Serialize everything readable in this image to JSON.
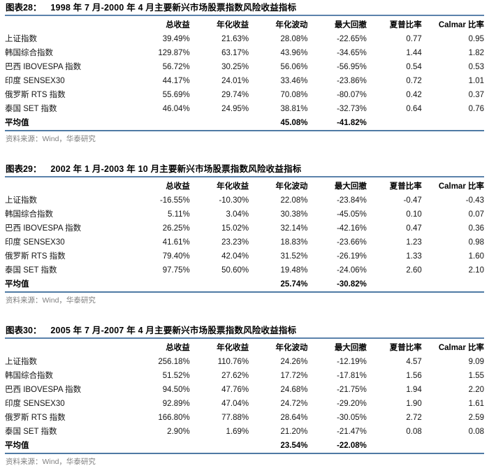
{
  "colors": {
    "title_rule": "#5b82ab",
    "bottom_rule": "#4f7aa4",
    "title_text": "#000000",
    "body_text": "#141414",
    "source_text": "#7f7f7f",
    "background": "#ffffff"
  },
  "columns": [
    "总收益",
    "年化收益",
    "年化波动",
    "最大回撤",
    "夏普比率",
    "Calmar 比率"
  ],
  "source_label": "资料来源：Wind，华泰研究",
  "figures": [
    {
      "label": "图表28：",
      "title": "1998 年 7 月-2000 年 4 月主要新兴市场股票指数风险收益指标",
      "rows": [
        {
          "name": "上证指数",
          "bold": false,
          "values": [
            "39.49%",
            "21.63%",
            "28.08%",
            "-22.65%",
            "0.77",
            "0.95"
          ]
        },
        {
          "name": "韩国综合指数",
          "bold": false,
          "values": [
            "129.87%",
            "63.17%",
            "43.96%",
            "-34.65%",
            "1.44",
            "1.82"
          ]
        },
        {
          "name": "巴西 IBOVESPA 指数",
          "bold": false,
          "values": [
            "56.72%",
            "30.25%",
            "56.06%",
            "-56.95%",
            "0.54",
            "0.53"
          ]
        },
        {
          "name": "印度 SENSEX30",
          "bold": false,
          "values": [
            "44.17%",
            "24.01%",
            "33.46%",
            "-23.86%",
            "0.72",
            "1.01"
          ]
        },
        {
          "name": "俄罗斯 RTS 指数",
          "bold": false,
          "values": [
            "55.69%",
            "29.74%",
            "70.08%",
            "-80.07%",
            "0.42",
            "0.37"
          ]
        },
        {
          "name": "泰国 SET 指数",
          "bold": false,
          "values": [
            "46.04%",
            "24.95%",
            "38.81%",
            "-32.73%",
            "0.64",
            "0.76"
          ]
        },
        {
          "name": "平均值",
          "bold": true,
          "values": [
            "",
            "",
            "45.08%",
            "-41.82%",
            "",
            ""
          ]
        }
      ]
    },
    {
      "label": "图表29：",
      "title": "2002 年 1 月-2003 年 10 月主要新兴市场股票指数风险收益指标",
      "rows": [
        {
          "name": "上证指数",
          "bold": false,
          "values": [
            "-16.55%",
            "-10.30%",
            "22.08%",
            "-23.84%",
            "-0.47",
            "-0.43"
          ]
        },
        {
          "name": "韩国综合指数",
          "bold": false,
          "values": [
            "5.11%",
            "3.04%",
            "30.38%",
            "-45.05%",
            "0.10",
            "0.07"
          ]
        },
        {
          "name": "巴西 IBOVESPA 指数",
          "bold": false,
          "values": [
            "26.25%",
            "15.02%",
            "32.14%",
            "-42.16%",
            "0.47",
            "0.36"
          ]
        },
        {
          "name": "印度 SENSEX30",
          "bold": false,
          "values": [
            "41.61%",
            "23.23%",
            "18.83%",
            "-23.66%",
            "1.23",
            "0.98"
          ]
        },
        {
          "name": "俄罗斯 RTS 指数",
          "bold": false,
          "values": [
            "79.40%",
            "42.04%",
            "31.52%",
            "-26.19%",
            "1.33",
            "1.60"
          ]
        },
        {
          "name": "泰国 SET 指数",
          "bold": false,
          "values": [
            "97.75%",
            "50.60%",
            "19.48%",
            "-24.06%",
            "2.60",
            "2.10"
          ]
        },
        {
          "name": "平均值",
          "bold": true,
          "values": [
            "",
            "",
            "25.74%",
            "-30.82%",
            "",
            ""
          ]
        }
      ]
    },
    {
      "label": "图表30：",
      "title": "2005 年 7 月-2007 年 4 月主要新兴市场股票指数风险收益指标",
      "rows": [
        {
          "name": "上证指数",
          "bold": false,
          "values": [
            "256.18%",
            "110.76%",
            "24.26%",
            "-12.19%",
            "4.57",
            "9.09"
          ]
        },
        {
          "name": "韩国综合指数",
          "bold": false,
          "values": [
            "51.52%",
            "27.62%",
            "17.72%",
            "-17.81%",
            "1.56",
            "1.55"
          ]
        },
        {
          "name": "巴西 IBOVESPA 指数",
          "bold": false,
          "values": [
            "94.50%",
            "47.76%",
            "24.68%",
            "-21.75%",
            "1.94",
            "2.20"
          ]
        },
        {
          "name": "印度 SENSEX30",
          "bold": false,
          "values": [
            "92.89%",
            "47.04%",
            "24.72%",
            "-29.20%",
            "1.90",
            "1.61"
          ]
        },
        {
          "name": "俄罗斯 RTS 指数",
          "bold": false,
          "values": [
            "166.80%",
            "77.88%",
            "28.64%",
            "-30.05%",
            "2.72",
            "2.59"
          ]
        },
        {
          "name": "泰国 SET 指数",
          "bold": false,
          "values": [
            "2.90%",
            "1.69%",
            "21.20%",
            "-21.47%",
            "0.08",
            "0.08"
          ]
        },
        {
          "name": "平均值",
          "bold": true,
          "values": [
            "",
            "",
            "23.54%",
            "-22.08%",
            "",
            ""
          ]
        }
      ]
    }
  ]
}
